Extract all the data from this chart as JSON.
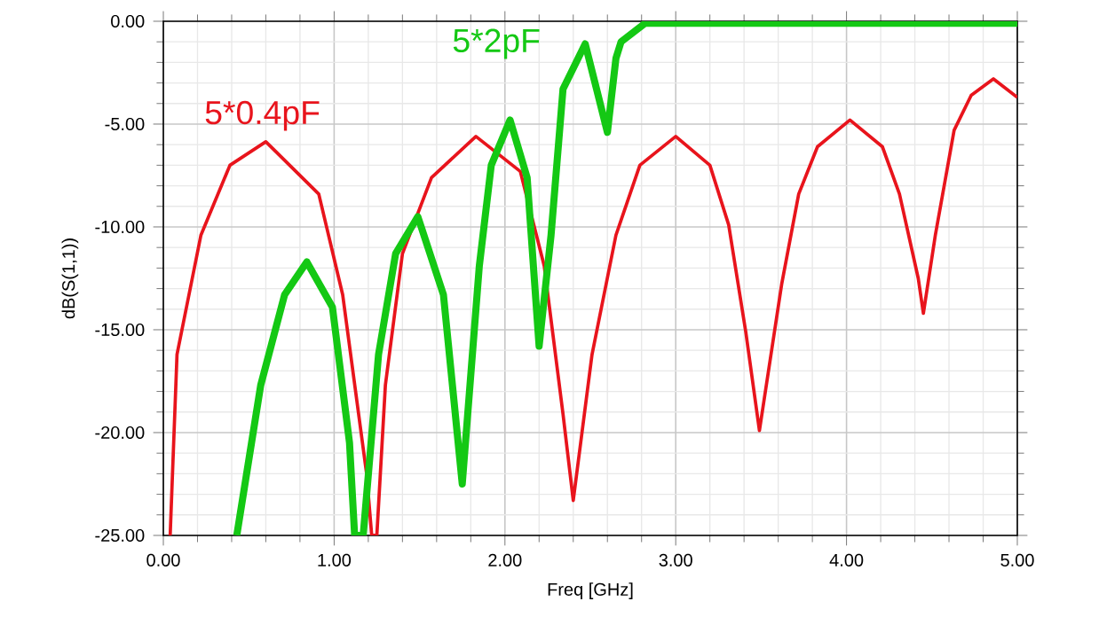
{
  "chart_data": {
    "type": "line",
    "xlabel": "Freq [GHz]",
    "ylabel": "dB(S(1,1))",
    "xlim": [
      0,
      5
    ],
    "ylim": [
      -25,
      0
    ],
    "xticks": [
      {
        "value": 0,
        "label": "0.00"
      },
      {
        "value": 1,
        "label": "1.00"
      },
      {
        "value": 2,
        "label": "2.00"
      },
      {
        "value": 3,
        "label": "3.00"
      },
      {
        "value": 4,
        "label": "4.00"
      },
      {
        "value": 5,
        "label": "5.00"
      }
    ],
    "yticks": [
      {
        "value": -25,
        "label": "-25.00"
      },
      {
        "value": -20,
        "label": "-20.00"
      },
      {
        "value": -15,
        "label": "-15.00"
      },
      {
        "value": -10,
        "label": "-10.00"
      },
      {
        "value": -5,
        "label": "-5.00"
      },
      {
        "value": 0,
        "label": "0.00"
      }
    ],
    "grid": true,
    "series": [
      {
        "name": "5*0.4pF",
        "color": "#e8141c",
        "x": [
          0.04,
          0.08,
          0.22,
          0.39,
          0.6,
          0.91,
          1.05,
          1.19,
          1.22,
          1.25,
          1.3,
          1.4,
          1.57,
          1.83,
          2.09,
          2.23,
          2.34,
          2.4,
          2.51,
          2.65,
          2.79,
          3.0,
          3.2,
          3.31,
          3.41,
          3.49,
          3.62,
          3.72,
          3.83,
          4.02,
          4.21,
          4.31,
          4.42,
          4.45,
          4.52,
          4.63,
          4.73,
          4.86,
          5.0
        ],
        "values": [
          -25,
          -16.2,
          -10.4,
          -7.0,
          -5.86,
          -8.4,
          -13.3,
          -22,
          -25,
          -25,
          -17.7,
          -11.3,
          -7.6,
          -5.6,
          -7.3,
          -11.9,
          -19.1,
          -23.3,
          -16.2,
          -10.4,
          -7.0,
          -5.6,
          -7.0,
          -9.9,
          -15.1,
          -19.9,
          -12.8,
          -8.4,
          -6.1,
          -4.8,
          -6.1,
          -8.4,
          -12.5,
          -14.2,
          -10.4,
          -5.3,
          -3.6,
          -2.8,
          -3.7
        ]
      },
      {
        "name": "5*2pF",
        "color": "#14c814",
        "x": [
          0.43,
          0.57,
          0.71,
          0.84,
          0.99,
          1.09,
          1.12,
          1.17,
          1.26,
          1.36,
          1.49,
          1.64,
          1.75,
          1.85,
          1.92,
          2.03,
          2.13,
          2.2,
          2.27,
          2.34,
          2.47,
          2.6,
          2.65,
          2.68,
          2.82,
          5.0
        ],
        "values": [
          -25,
          -17.7,
          -13.3,
          -11.7,
          -13.9,
          -20.5,
          -25,
          -25,
          -16.2,
          -11.3,
          -9.5,
          -13.3,
          -22.5,
          -11.9,
          -7.0,
          -4.8,
          -7.6,
          -15.8,
          -10.4,
          -3.3,
          -1.1,
          -5.4,
          -1.8,
          -1.0,
          -0.1,
          -0.1
        ]
      }
    ]
  }
}
